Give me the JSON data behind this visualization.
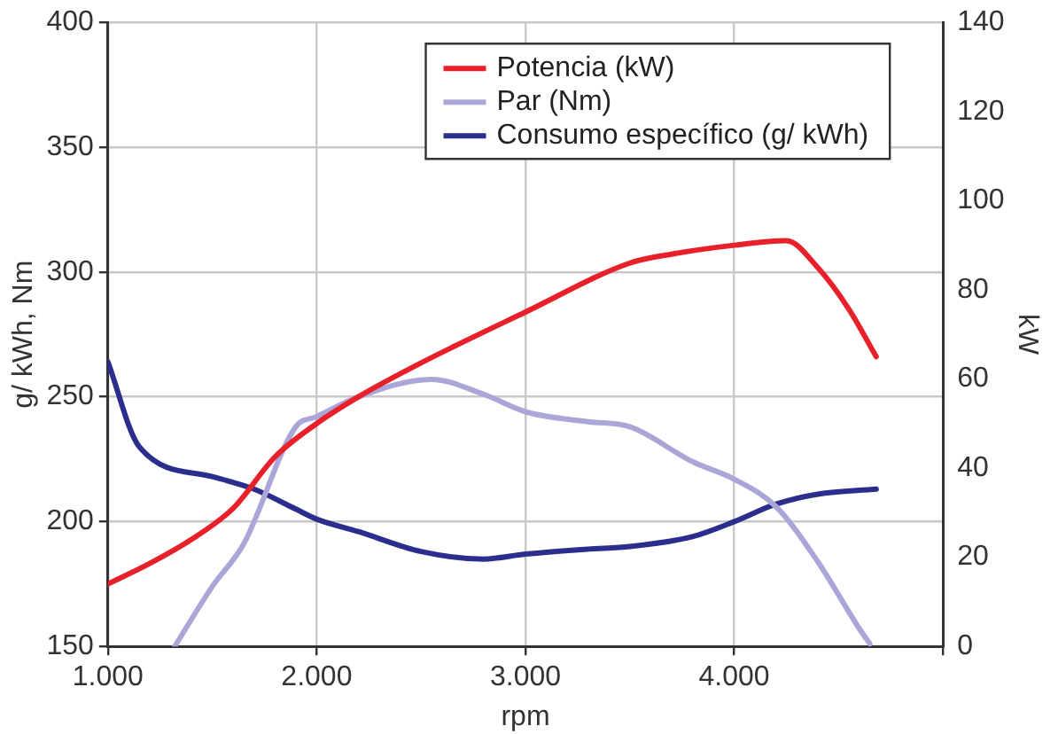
{
  "chart_data": {
    "type": "line",
    "xlabel": "rpm",
    "ylabel": "g/ kWh, Nm",
    "y2label": "kW",
    "xlim": [
      1000,
      5000
    ],
    "xticks": [
      {
        "value": 1000,
        "label": "1.000"
      },
      {
        "value": 2000,
        "label": "2.000"
      },
      {
        "value": 3000,
        "label": "3.000"
      },
      {
        "value": 4000,
        "label": "4.000"
      },
      {
        "value": 5000,
        "label": null
      }
    ],
    "ylim": [
      150,
      400
    ],
    "yticks": [
      150,
      200,
      250,
      300,
      350,
      400
    ],
    "y2lim": [
      0,
      140
    ],
    "y2ticks": [
      0,
      20,
      40,
      60,
      80,
      100,
      120,
      140
    ],
    "grid": true,
    "legend": "top right",
    "marker": "none",
    "line_style": "solid",
    "series": [
      {
        "name": "Potencia (kW)",
        "color": "#e8202a",
        "axis": "y2",
        "x": [
          1000,
          1200,
          1400,
          1600,
          1800,
          2000,
          2200,
          2500,
          3000,
          3500,
          3700,
          4000,
          4250,
          4400,
          4550,
          4680
        ],
        "values": [
          14,
          18.6,
          24,
          31,
          42.5,
          50,
          56,
          63.6,
          75,
          86,
          88,
          90,
          91,
          85,
          75.6,
          65
        ]
      },
      {
        "name": "Par (Nm)",
        "color": "#aaa7d8",
        "x": [
          1320,
          1500,
          1650,
          1900,
          2000,
          2200,
          2550,
          2800,
          3000,
          3300,
          3500,
          3800,
          4000,
          4200,
          4400,
          4600,
          4650
        ],
        "values": [
          150,
          174,
          191,
          238,
          242,
          250,
          257,
          251,
          244,
          240,
          238,
          224,
          217,
          206,
          184,
          157,
          151
        ]
      },
      {
        "name": "Consumo específico (g/ kWh)",
        "color": "#2b2e8c",
        "x": [
          1000,
          1150,
          1500,
          1700,
          1900,
          2000,
          2200,
          2500,
          2800,
          3000,
          3300,
          3500,
          3800,
          4000,
          4200,
          4400,
          4680
        ],
        "values": [
          264,
          230,
          218,
          213,
          205,
          201,
          196,
          188,
          185,
          187,
          189,
          190,
          194,
          200,
          207,
          211,
          213
        ]
      }
    ]
  }
}
